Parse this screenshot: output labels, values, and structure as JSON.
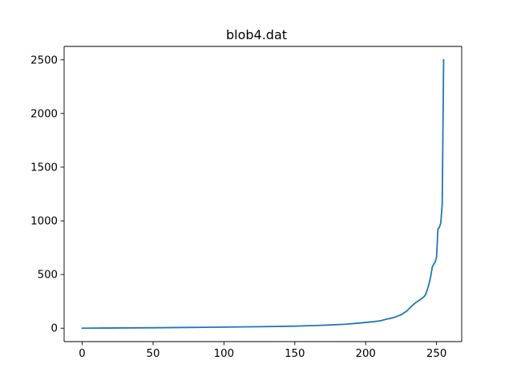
{
  "chart_data": {
    "type": "line",
    "title": "blob4.dat",
    "xlabel": "",
    "ylabel": "",
    "xlim": [
      -12.75,
      267.75
    ],
    "ylim": [
      -125,
      2625
    ],
    "x_ticks": [
      0,
      50,
      100,
      150,
      200,
      250
    ],
    "y_ticks": [
      0,
      500,
      1000,
      1500,
      2000,
      2500
    ],
    "grid": false,
    "series": [
      {
        "color": "#1f77b4",
        "points": [
          [
            0,
            0
          ],
          [
            25,
            2
          ],
          [
            50,
            4
          ],
          [
            75,
            7
          ],
          [
            100,
            10
          ],
          [
            125,
            14
          ],
          [
            150,
            19
          ],
          [
            165,
            25
          ],
          [
            175,
            30
          ],
          [
            185,
            36
          ],
          [
            195,
            47
          ],
          [
            205,
            60
          ],
          [
            210,
            68
          ],
          [
            215,
            85
          ],
          [
            220,
            100
          ],
          [
            225,
            125
          ],
          [
            229,
            160
          ],
          [
            232,
            200
          ],
          [
            235,
            235
          ],
          [
            238,
            262
          ],
          [
            240,
            280
          ],
          [
            242,
            305
          ],
          [
            243,
            340
          ],
          [
            244,
            380
          ],
          [
            245,
            430
          ],
          [
            246,
            490
          ],
          [
            247,
            570
          ],
          [
            248,
            595
          ],
          [
            249,
            615
          ],
          [
            250,
            660
          ],
          [
            251,
            925
          ],
          [
            252,
            940
          ],
          [
            253,
            980
          ],
          [
            254,
            1150
          ],
          [
            255,
            2500
          ]
        ]
      }
    ]
  }
}
